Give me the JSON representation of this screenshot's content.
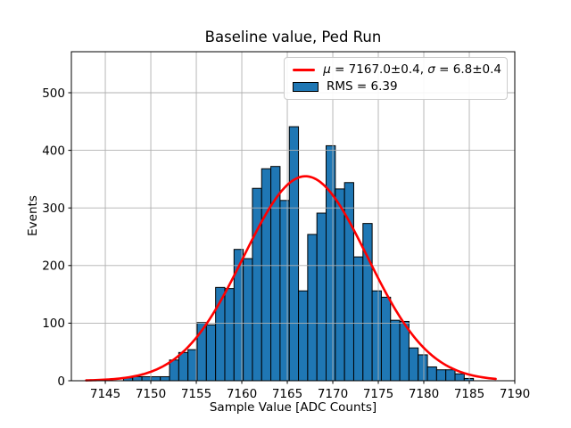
{
  "figure_title": "Baseline value, Ped Run",
  "chart_data": {
    "type": "bar",
    "subtype": "histogram-with-gaussian-fit",
    "title": "Baseline value, Ped Run",
    "xlabel": "Sample Value [ADC Counts]",
    "ylabel": "Events",
    "xlim": [
      7141.27,
      7190.0
    ],
    "ylim": [
      0,
      571.2
    ],
    "xticks": [
      7145,
      7150,
      7155,
      7160,
      7165,
      7170,
      7175,
      7180,
      7185,
      7190
    ],
    "yticks": [
      0,
      100,
      200,
      300,
      400,
      500
    ],
    "grid": true,
    "grid_color": "#b0b0b0",
    "bar_color": "#1f77b4",
    "bar_edge_color": "#000000",
    "bins": {
      "start": 7147.0,
      "width": 1.012,
      "counts": [
        5,
        7,
        7,
        7,
        7,
        36,
        49,
        54,
        101,
        97,
        162,
        160,
        228,
        212,
        334,
        368,
        372,
        313,
        441,
        156,
        254,
        291,
        408,
        333,
        344,
        215,
        273,
        156,
        145,
        105,
        103,
        57,
        45,
        24,
        19,
        19,
        12,
        4
      ]
    },
    "fit_curve": {
      "shape": "gaussian",
      "color": "#ff0000",
      "amplitude": 355,
      "mu": 7167.0,
      "sigma": 6.8,
      "x_start": 7142.9,
      "x_end": 7187.9,
      "linewidth": 2.6
    },
    "legend": {
      "position": "upper-right",
      "entries": [
        {
          "type": "line",
          "color": "#ff0000",
          "label": "μ = 7167.0±0.4, σ = 6.8±0.4",
          "parts": {
            "mu_symbol": "μ",
            "mu_value_text": " = 7167.0±0.4, ",
            "sigma_symbol": "σ",
            "sigma_value_text": " = 6.8±0.4"
          }
        },
        {
          "type": "patch",
          "color": "#1f77b4",
          "label": "RMS = 6.39"
        }
      ]
    }
  }
}
